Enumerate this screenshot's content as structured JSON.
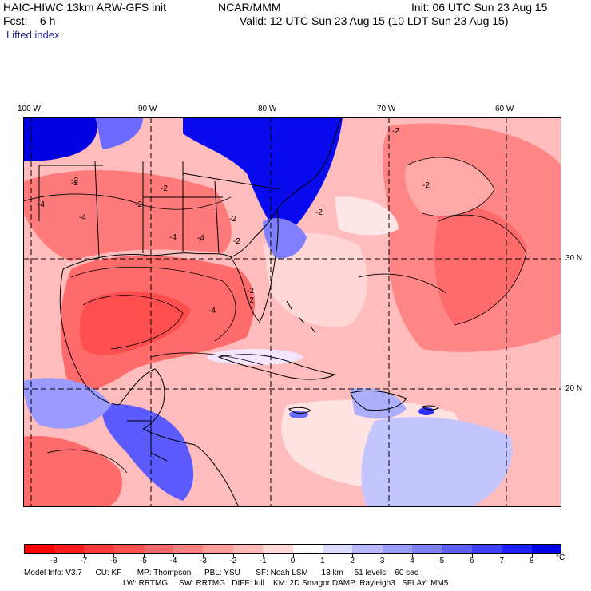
{
  "header": {
    "model": "HAIC-HIWC 13km ARW-GFS init",
    "org": "NCAR/MMM",
    "init": "Init: 06 UTC Sun 23 Aug 15",
    "fcst": "Fcst:    6 h",
    "valid": "Valid: 12 UTC Sun 23 Aug 15 (10 LDT Sun 23 Aug 15)",
    "field": "Lifted index"
  },
  "map": {
    "lon_labels": [
      "100 W",
      "90 W",
      "80 W",
      "70 W",
      "60 W"
    ],
    "lat_labels": [
      "30 N",
      "20 N"
    ],
    "contour_labels": [
      "-2",
      "-4",
      "-2",
      "-4",
      "-4",
      "-2",
      "-4",
      "-2",
      "-2",
      "-2",
      "-4",
      "-2",
      "-2",
      "-2",
      "-2",
      "-2"
    ]
  },
  "colorbar": {
    "labels": [
      "-8",
      "-7",
      "-6",
      "-5",
      "-4",
      "-3",
      "-2",
      "-1",
      "0",
      "1",
      "2",
      "3",
      "4",
      "5",
      "6",
      "7",
      "8"
    ],
    "unit": "°C",
    "colors": [
      "#ff0000",
      "#ff1c1c",
      "#ff3838",
      "#ff5050",
      "#ff6868",
      "#ff8080",
      "#ff9c9c",
      "#ffb8b8",
      "#ffd8d8",
      "#ffffff",
      "#dcdcff",
      "#b8b8ff",
      "#9c9cff",
      "#8080ff",
      "#6060ff",
      "#4040ff",
      "#2020ff",
      "#0000e6"
    ]
  },
  "footer": {
    "line1": "Model Info: V3.7      CU: KF       MP: Thompson      PBL: YSU       SF: Noah LSM      13 km     51 levels    60 sec",
    "line2": "LW: RRTMG     SW: RRTMG   DIFF: full    KM: 2D Smagor DAMP: Rayleigh3   SFLAY: MM5"
  }
}
